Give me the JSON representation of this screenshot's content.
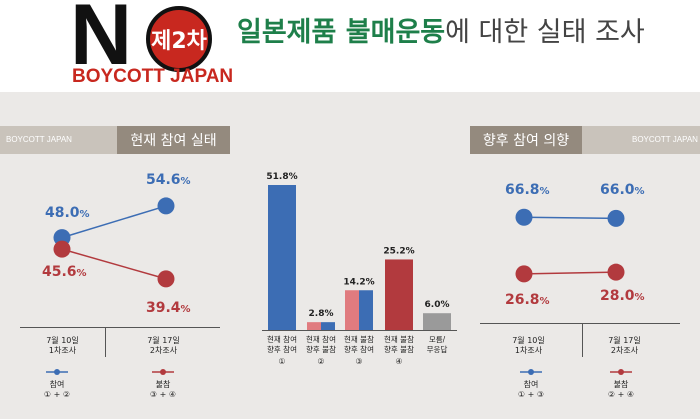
{
  "header": {
    "logo_n": "N",
    "logo_badge": "제2차",
    "logo_boycott": "BOYCOTT JAPAN",
    "title_part1": "일본제품 불매운동",
    "title_part2": "에 대한 실태 조사"
  },
  "left_panel": {
    "strip_text": "BOYCOTT JAPAN",
    "heading": "현재 참여 실태"
  },
  "right_panel": {
    "strip_text": "BOYCOTT JAPAN",
    "heading": "향후 참여 의향"
  },
  "colors": {
    "blue": "#3c6db4",
    "red": "#b23a3e",
    "light_red": "#e07b7f",
    "light_blue": "#7ba3d8",
    "gray": "#9a9a9a"
  },
  "chart_data": [
    {
      "type": "line",
      "title": "현재 참여 실태",
      "x": [
        "7월 10일\n1차조사",
        "7월 17일\n2차조사"
      ],
      "x_label_lines": [
        [
          "7월 10일",
          "1차조사"
        ],
        [
          "7월 17일",
          "2차조사"
        ]
      ],
      "series": [
        {
          "name": "참여",
          "note": "① + ②",
          "values": [
            48.0,
            54.6
          ],
          "labels": [
            "48.0",
            "54.6"
          ],
          "color": "blue"
        },
        {
          "name": "불참",
          "note": "③ + ④",
          "values": [
            45.6,
            39.4
          ],
          "labels": [
            "45.6",
            "39.4"
          ],
          "color": "red"
        }
      ],
      "unit": "%"
    },
    {
      "type": "bar",
      "categories": [
        {
          "lines": [
            "현재 참여",
            "향후 참여"
          ],
          "num": "①"
        },
        {
          "lines": [
            "현재 참여",
            "향후 불참"
          ],
          "num": "②"
        },
        {
          "lines": [
            "현재 불참",
            "향후 참여"
          ],
          "num": "③"
        },
        {
          "lines": [
            "현재 불참",
            "향후 불참"
          ],
          "num": "④"
        },
        {
          "lines": [
            "모름/",
            "무응답"
          ],
          "num": ""
        }
      ],
      "values": [
        51.8,
        2.8,
        14.2,
        25.2,
        6.0
      ],
      "labels": [
        "51.8%",
        "2.8%",
        "14.2%",
        "25.2%",
        "6.0%"
      ],
      "ylim": [
        0,
        60
      ]
    },
    {
      "type": "line",
      "title": "향후 참여 의향",
      "x": [
        "7월 10일\n1차조사",
        "7월 17일\n2차조사"
      ],
      "x_label_lines": [
        [
          "7월 10일",
          "1차조사"
        ],
        [
          "7월 17일",
          "2차조사"
        ]
      ],
      "series": [
        {
          "name": "참여",
          "note": "① + ③",
          "values": [
            66.8,
            66.0
          ],
          "labels": [
            "66.8",
            "66.0"
          ],
          "color": "blue"
        },
        {
          "name": "불참",
          "note": "② + ④",
          "values": [
            26.8,
            28.0
          ],
          "labels": [
            "26.8",
            "28.0"
          ],
          "color": "red"
        }
      ],
      "unit": "%"
    }
  ]
}
